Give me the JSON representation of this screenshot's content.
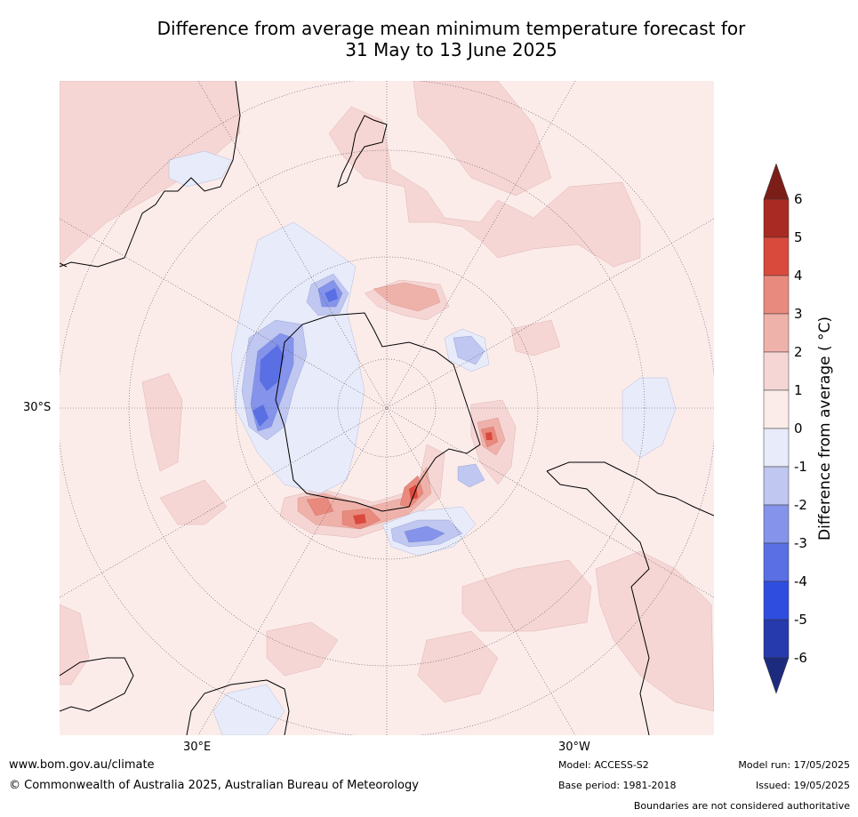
{
  "title": {
    "line1": "Difference from average mean minimum temperature forecast for",
    "line2": "31 May to 13 June 2025"
  },
  "map": {
    "projection": "south-polar-stereographic",
    "lat_labels": [
      "30°S"
    ],
    "lon_labels": [
      "30°E",
      "30°W"
    ]
  },
  "colorbar": {
    "label": "Difference from average ( °C)",
    "ticks": [
      "6",
      "5",
      "4",
      "3",
      "2",
      "1",
      "0",
      "-1",
      "-2",
      "-3",
      "-4",
      "-5",
      "-6"
    ],
    "colors": {
      "above_6": "#7b1e17",
      "5_to_6": "#a82a22",
      "4_to_5": "#d94a3d",
      "3_to_4": "#e98a7e",
      "2_to_3": "#efb2aa",
      "1_to_2": "#f5d6d4",
      "0_to_1": "#fbecea",
      "neg1_to_0": "#e8ebf9",
      "neg2_to_neg1": "#c0c7f0",
      "neg3_to_neg2": "#8594ea",
      "neg4_to_neg3": "#5a6fe4",
      "neg5_to_neg4": "#2f4ee0",
      "neg6_to_neg5": "#263aad",
      "below_neg6": "#1d2b7f"
    }
  },
  "footer": {
    "url": "www.bom.gov.au/climate",
    "copyright": "© Commonwealth of Australia 2025, Australian Bureau of Meteorology",
    "model": "Model: ACCESS-S2",
    "base_period": "Base period: 1981-2018",
    "model_run": "Model run: 17/05/2025",
    "issued": "Issued: 19/05/2025",
    "boundaries_note": "Boundaries are not considered authoritative"
  }
}
